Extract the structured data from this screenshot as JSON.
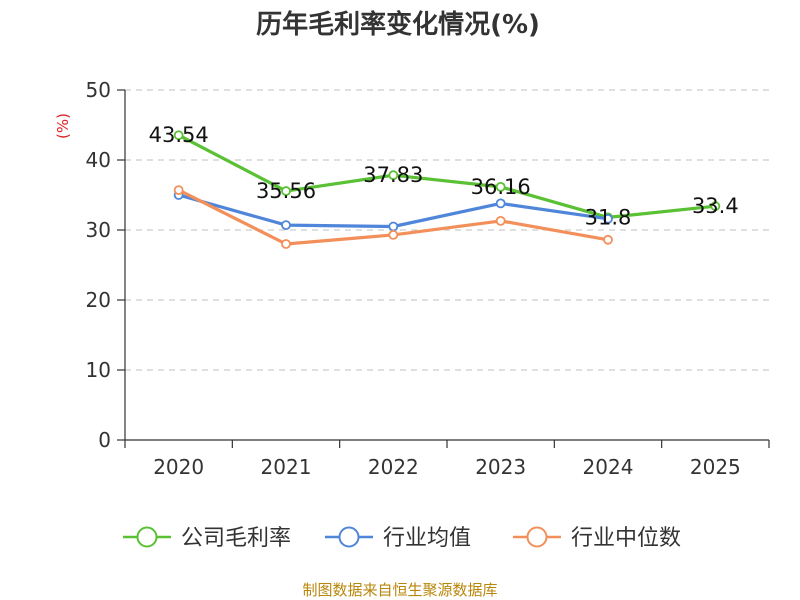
{
  "chart_data": {
    "type": "line",
    "title": "历年毛利率变化情况(%)",
    "ylabel": "(%)",
    "xlabel": "",
    "categories": [
      "2020",
      "2021",
      "2022",
      "2023",
      "2024",
      "2025"
    ],
    "ylim": [
      0,
      50
    ],
    "yticks": [
      0,
      10,
      20,
      30,
      40,
      50
    ],
    "grid": true,
    "legend_position": "bottom",
    "series": [
      {
        "name": "公司毛利率",
        "color": "#5ac034",
        "values": [
          43.54,
          35.56,
          37.83,
          36.16,
          31.8,
          33.4
        ],
        "show_labels": true
      },
      {
        "name": "行业均值",
        "color": "#4f86d9",
        "values": [
          35.0,
          30.7,
          30.5,
          33.8,
          31.6,
          null
        ],
        "show_labels": false
      },
      {
        "name": "行业中位数",
        "color": "#f28f5a",
        "values": [
          35.7,
          28.0,
          29.3,
          31.3,
          28.6,
          null
        ],
        "show_labels": false
      }
    ]
  },
  "footer": {
    "source": "制图数据来自恒生聚源数据库"
  }
}
